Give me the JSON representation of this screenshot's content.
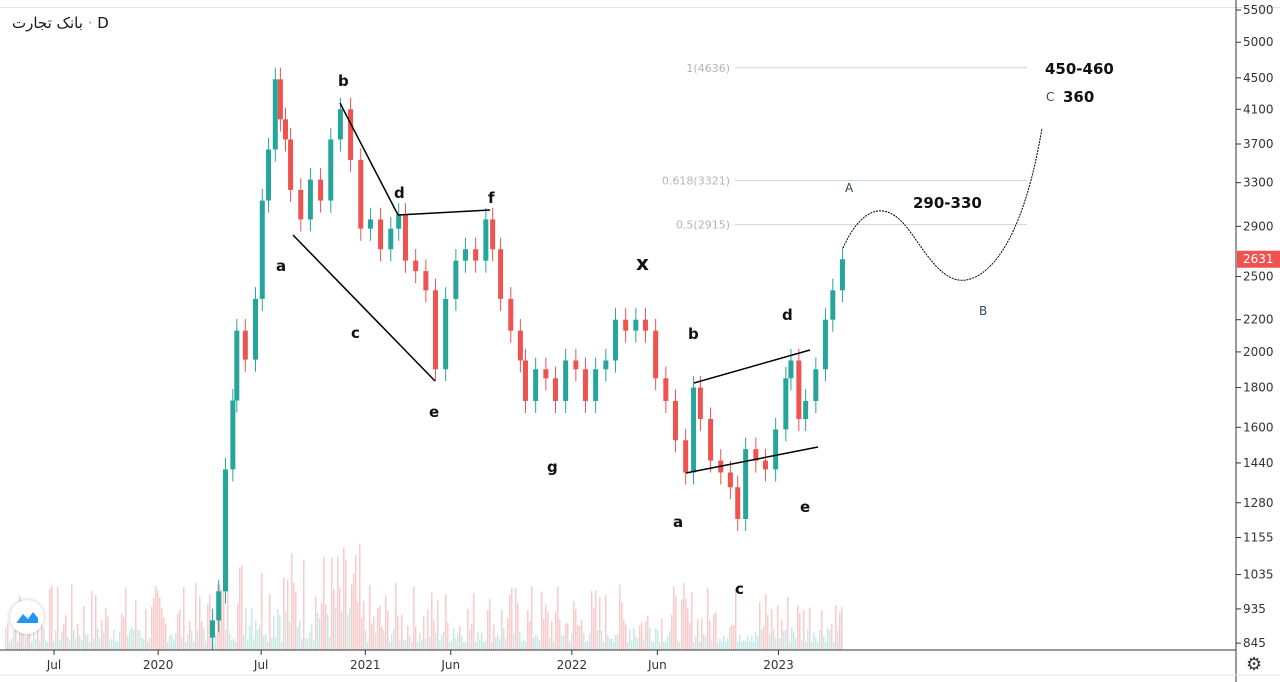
{
  "header": {
    "symbol": "بانک تجارت",
    "interval": "D"
  },
  "colors": {
    "up": "#26a69a",
    "down": "#ef5350",
    "last_price_bg": "#ef5350",
    "fib_line": "#d1d4dc"
  },
  "chart_data": {
    "type": "candlestick",
    "title": "",
    "y_scale": "log",
    "ylim": [
      845,
      5500
    ],
    "y_ticks": [
      5500,
      5000,
      4500,
      4100,
      3700,
      3300,
      2900,
      2500,
      2200,
      2000,
      1800,
      1600,
      1440,
      1280,
      1155,
      1035,
      935,
      845
    ],
    "x_ticks": [
      {
        "label": "Jul",
        "date": "2019-07-01"
      },
      {
        "label": "2020",
        "date": "2020-01-01"
      },
      {
        "label": "Jul",
        "date": "2020-07-01"
      },
      {
        "label": "2021",
        "date": "2021-01-01"
      },
      {
        "label": "Jun",
        "date": "2021-06-01"
      },
      {
        "label": "2022",
        "date": "2022-01-01"
      },
      {
        "label": "Jun",
        "date": "2022-06-01"
      },
      {
        "label": "2023",
        "date": "2023-01-01"
      }
    ],
    "last_price": "2631",
    "closes": [
      [
        "2020-04-06",
        904
      ],
      [
        "2020-04-17",
        985
      ],
      [
        "2020-04-29",
        1413
      ],
      [
        "2020-05-12",
        1732
      ],
      [
        "2020-05-19",
        2130
      ],
      [
        "2020-06-03",
        1955
      ],
      [
        "2020-06-21",
        2340
      ],
      [
        "2020-07-03",
        3130
      ],
      [
        "2020-07-14",
        3640
      ],
      [
        "2020-07-26",
        4480
      ],
      [
        "2020-08-04",
        3980
      ],
      [
        "2020-08-13",
        3750
      ],
      [
        "2020-08-22",
        3230
      ],
      [
        "2020-09-09",
        2960
      ],
      [
        "2020-09-26",
        3330
      ],
      [
        "2020-10-14",
        3130
      ],
      [
        "2020-11-01",
        3750
      ],
      [
        "2020-11-18",
        4100
      ],
      [
        "2020-12-06",
        3530
      ],
      [
        "2020-12-24",
        2880
      ],
      [
        "2021-01-10",
        2960
      ],
      [
        "2021-01-28",
        2710
      ],
      [
        "2021-02-15",
        2880
      ],
      [
        "2021-03-01",
        3000
      ],
      [
        "2021-03-13",
        2620
      ],
      [
        "2021-03-31",
        2540
      ],
      [
        "2021-04-18",
        2400
      ],
      [
        "2021-05-05",
        1900
      ],
      [
        "2021-05-23",
        2340
      ],
      [
        "2021-06-10",
        2620
      ],
      [
        "2021-06-27",
        2710
      ],
      [
        "2021-07-15",
        2620
      ],
      [
        "2021-08-02",
        2960
      ],
      [
        "2021-08-14",
        2710
      ],
      [
        "2021-08-28",
        2340
      ],
      [
        "2021-09-15",
        2130
      ],
      [
        "2021-10-02",
        1950
      ],
      [
        "2021-10-11",
        1730
      ],
      [
        "2021-10-29",
        1900
      ],
      [
        "2021-11-16",
        1850
      ],
      [
        "2021-12-03",
        1730
      ],
      [
        "2021-12-21",
        1950
      ],
      [
        "2022-01-08",
        1900
      ],
      [
        "2022-01-25",
        1730
      ],
      [
        "2022-02-12",
        1900
      ],
      [
        "2022-03-02",
        1950
      ],
      [
        "2022-03-19",
        2200
      ],
      [
        "2022-04-06",
        2130
      ],
      [
        "2022-04-24",
        2200
      ],
      [
        "2022-05-11",
        2130
      ],
      [
        "2022-05-29",
        1850
      ],
      [
        "2022-06-16",
        1730
      ],
      [
        "2022-07-03",
        1540
      ],
      [
        "2022-07-21",
        1400
      ],
      [
        "2022-08-04",
        1800
      ],
      [
        "2022-08-16",
        1640
      ],
      [
        "2022-09-03",
        1450
      ],
      [
        "2022-09-21",
        1400
      ],
      [
        "2022-10-08",
        1340
      ],
      [
        "2022-10-21",
        1220
      ],
      [
        "2022-11-04",
        1500
      ],
      [
        "2022-11-22",
        1450
      ],
      [
        "2022-12-09",
        1413
      ],
      [
        "2022-12-27",
        1590
      ],
      [
        "2023-01-14",
        1850
      ],
      [
        "2023-01-23",
        1950
      ],
      [
        "2023-02-06",
        1640
      ],
      [
        "2023-02-18",
        1730
      ],
      [
        "2023-03-08",
        1900
      ],
      [
        "2023-03-25",
        2200
      ],
      [
        "2023-04-07",
        2400
      ],
      [
        "2023-04-24",
        2631
      ]
    ],
    "fib_levels": [
      {
        "label": "1(4636)",
        "price": 4636
      },
      {
        "label": "0.618(3321)",
        "price": 3321
      },
      {
        "label": "0.5(2915)",
        "price": 2915
      }
    ],
    "annotations": {
      "wave_a1": "a",
      "wave_b1": "b",
      "wave_c1": "c",
      "wave_d1": "d",
      "wave_e1": "e",
      "wave_f1": "f",
      "wave_g": "g",
      "wave_x": "x",
      "wave_a2": "a",
      "wave_b2": "b",
      "wave_c2": "c",
      "wave_d2": "d",
      "wave_e2": "e",
      "proj_A": "A",
      "proj_B": "B",
      "proj_C": "C",
      "target_1": "450-460",
      "target_2": "360",
      "target_3": "290-330"
    }
  }
}
